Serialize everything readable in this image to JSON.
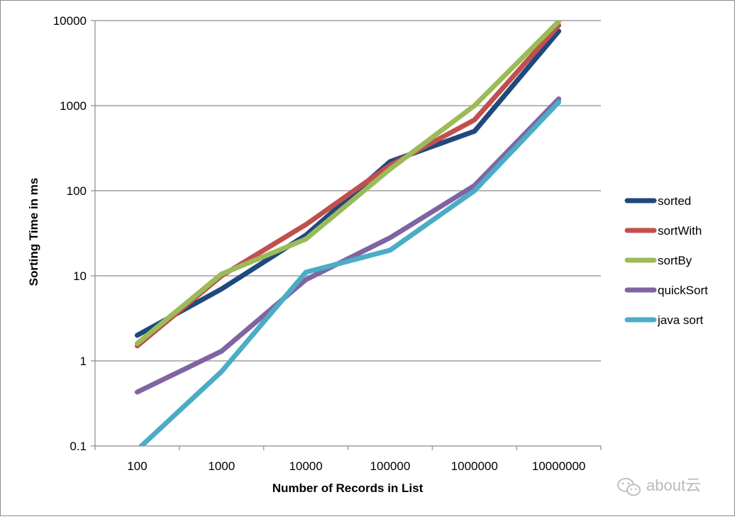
{
  "chart_data": {
    "type": "line",
    "categories": [
      "100",
      "1000",
      "10000",
      "100000",
      "1000000",
      "10000000"
    ],
    "xlabel": "Number of Records in List",
    "ylabel": "Sorting Time in ms",
    "yscale": "log",
    "ylim": [
      0.1,
      10000
    ],
    "yticks": [
      "0.1",
      "1",
      "10",
      "100",
      "1000",
      "10000"
    ],
    "grid": true,
    "legend_position": "right",
    "series": [
      {
        "name": "sorted",
        "color": "#1f497d",
        "values": [
          2,
          7,
          30,
          220,
          500,
          7500
        ]
      },
      {
        "name": "sortWith",
        "color": "#c0504d",
        "values": [
          1.5,
          10,
          40,
          200,
          680,
          8800
        ]
      },
      {
        "name": "sortBy",
        "color": "#9bbb59",
        "values": [
          1.6,
          10.5,
          27,
          180,
          1000,
          9800
        ]
      },
      {
        "name": "quickSort",
        "color": "#8064a2",
        "values": [
          0.43,
          1.3,
          9,
          28,
          115,
          1200
        ]
      },
      {
        "name": "java sort",
        "color": "#4bacc6",
        "values": [
          0.09,
          0.75,
          11,
          20,
          100,
          1100
        ]
      }
    ]
  },
  "watermark": {
    "text": "about云",
    "icon": "wechat-icon"
  }
}
